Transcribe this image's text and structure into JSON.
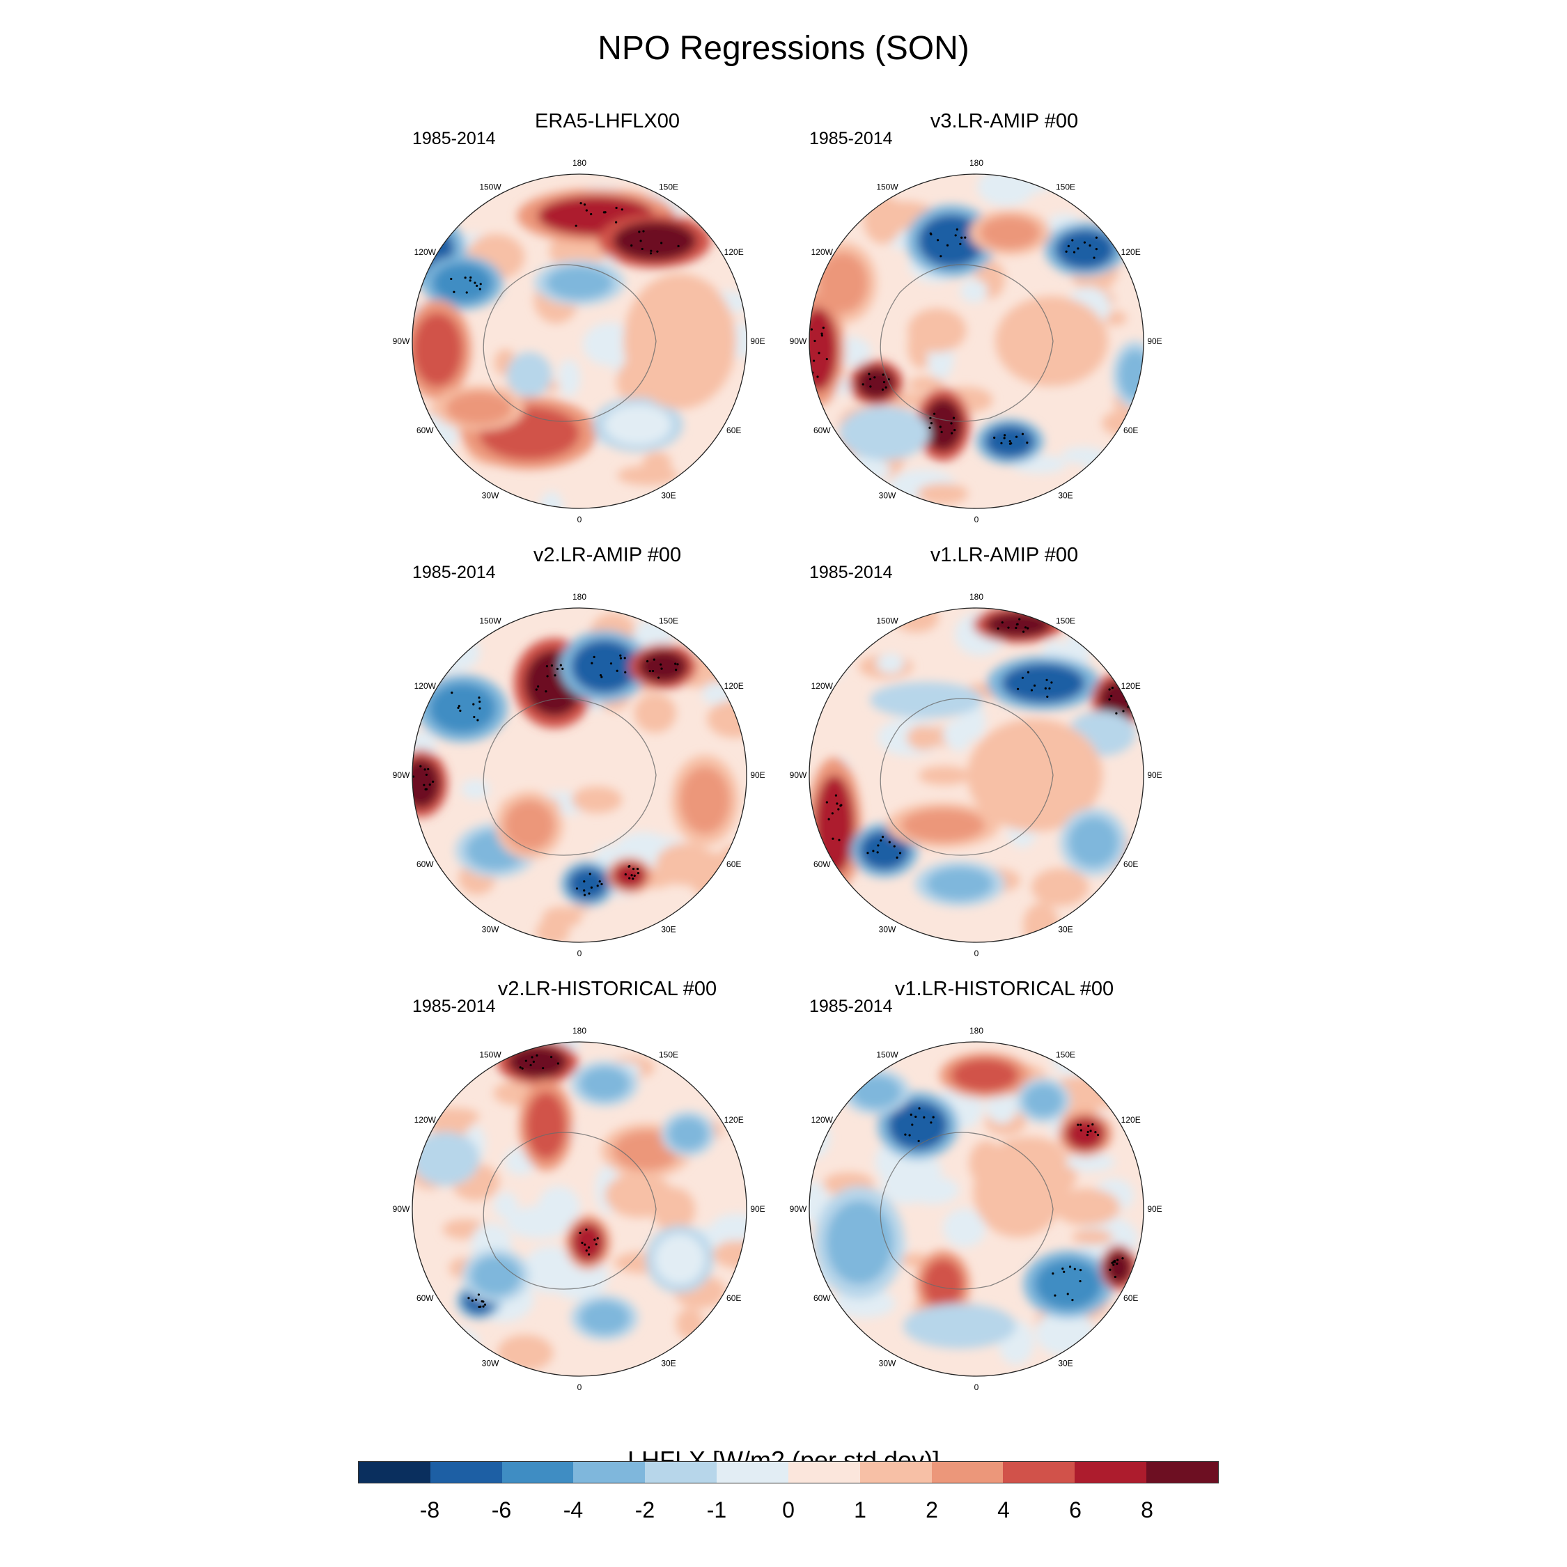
{
  "title": "NPO Regressions (SON)",
  "panels": [
    {
      "title": "ERA5-LHFLX00",
      "period": "1985-2014",
      "blobs": [
        [
          -0.95,
          -0.55,
          0.2,
          0.16,
          -8
        ],
        [
          -0.7,
          -0.35,
          0.18,
          0.12,
          -6
        ],
        [
          0.1,
          -0.75,
          0.35,
          0.12,
          6
        ],
        [
          0.45,
          -0.6,
          0.25,
          0.12,
          8
        ],
        [
          0.0,
          -0.35,
          0.2,
          0.1,
          -4
        ],
        [
          -0.85,
          0.05,
          0.15,
          0.22,
          4
        ],
        [
          -0.3,
          0.55,
          0.3,
          0.16,
          4
        ],
        [
          -0.6,
          0.4,
          0.2,
          0.1,
          2
        ],
        [
          0.35,
          0.5,
          0.2,
          0.12,
          -1
        ],
        [
          0.6,
          0.0,
          0.25,
          0.3,
          1
        ],
        [
          -0.3,
          0.2,
          0.1,
          0.1,
          -2
        ]
      ]
    },
    {
      "title": "v3.LR-AMIP  #00",
      "period": "1985-2014",
      "blobs": [
        [
          -0.15,
          -0.6,
          0.2,
          0.16,
          -8
        ],
        [
          0.65,
          -0.55,
          0.18,
          0.12,
          -8
        ],
        [
          0.2,
          -0.65,
          0.18,
          0.1,
          2
        ],
        [
          -0.8,
          -0.35,
          0.15,
          0.18,
          2
        ],
        [
          -0.95,
          0.05,
          0.12,
          0.25,
          6
        ],
        [
          -0.6,
          0.25,
          0.12,
          0.1,
          8
        ],
        [
          -0.2,
          0.5,
          0.12,
          0.16,
          8
        ],
        [
          0.2,
          0.6,
          0.15,
          0.1,
          -8
        ],
        [
          -0.55,
          0.55,
          0.2,
          0.12,
          -2
        ],
        [
          0.45,
          0.0,
          0.25,
          0.2,
          1
        ],
        [
          0.95,
          0.2,
          0.1,
          0.15,
          -4
        ]
      ]
    },
    {
      "title": "v2.LR-AMIP  #00",
      "period": "1985-2014",
      "blobs": [
        [
          -0.15,
          -0.55,
          0.18,
          0.2,
          8
        ],
        [
          0.15,
          -0.65,
          0.2,
          0.16,
          -8
        ],
        [
          0.5,
          -0.65,
          0.15,
          0.1,
          8
        ],
        [
          -0.7,
          -0.4,
          0.2,
          0.15,
          -6
        ],
        [
          -0.95,
          0.05,
          0.12,
          0.15,
          8
        ],
        [
          -0.5,
          0.45,
          0.18,
          0.12,
          -4
        ],
        [
          0.05,
          0.65,
          0.12,
          0.1,
          -8
        ],
        [
          0.3,
          0.6,
          0.1,
          0.08,
          6
        ],
        [
          0.75,
          0.15,
          0.15,
          0.2,
          2
        ],
        [
          -0.3,
          0.3,
          0.15,
          0.15,
          2
        ]
      ]
    },
    {
      "title": "v1.LR-AMIP  #00",
      "period": "1985-2014",
      "blobs": [
        [
          0.25,
          -0.9,
          0.2,
          0.08,
          8
        ],
        [
          0.4,
          -0.55,
          0.25,
          0.12,
          -8
        ],
        [
          0.85,
          -0.45,
          0.12,
          0.12,
          8
        ],
        [
          0.75,
          -0.25,
          0.15,
          0.1,
          -2
        ],
        [
          -0.85,
          0.3,
          0.12,
          0.3,
          6
        ],
        [
          -0.55,
          0.45,
          0.15,
          0.12,
          -8
        ],
        [
          -0.1,
          0.65,
          0.2,
          0.1,
          -4
        ],
        [
          -0.2,
          0.3,
          0.25,
          0.1,
          2
        ],
        [
          0.35,
          0.0,
          0.3,
          0.25,
          1
        ],
        [
          -0.3,
          -0.45,
          0.25,
          0.08,
          -2
        ],
        [
          0.7,
          0.4,
          0.15,
          0.15,
          -4
        ]
      ]
    },
    {
      "title": "v2.LR-HISTORICAL  #00",
      "period": "1985-2014",
      "blobs": [
        [
          -0.25,
          -0.88,
          0.18,
          0.1,
          8
        ],
        [
          0.15,
          -0.75,
          0.15,
          0.1,
          -4
        ],
        [
          -0.2,
          -0.5,
          0.12,
          0.2,
          4
        ],
        [
          0.4,
          -0.35,
          0.2,
          0.12,
          2
        ],
        [
          0.65,
          -0.45,
          0.12,
          0.1,
          -4
        ],
        [
          -0.6,
          0.55,
          0.1,
          0.08,
          -8
        ],
        [
          -0.5,
          0.4,
          0.15,
          0.12,
          -4
        ],
        [
          0.05,
          0.2,
          0.1,
          0.12,
          6
        ],
        [
          0.15,
          0.65,
          0.15,
          0.1,
          -4
        ],
        [
          -0.8,
          -0.3,
          0.15,
          0.12,
          -2
        ],
        [
          0.6,
          0.3,
          0.15,
          0.15,
          -1
        ]
      ]
    },
    {
      "title": "v1.LR-HISTORICAL  #00",
      "period": "1985-2014",
      "blobs": [
        [
          -0.35,
          -0.5,
          0.18,
          0.15,
          -8
        ],
        [
          -0.6,
          -0.7,
          0.15,
          0.1,
          -4
        ],
        [
          0.05,
          -0.8,
          0.2,
          0.1,
          4
        ],
        [
          0.4,
          -0.65,
          0.12,
          0.1,
          -4
        ],
        [
          0.65,
          -0.45,
          0.12,
          0.1,
          6
        ],
        [
          -0.7,
          0.2,
          0.2,
          0.25,
          -4
        ],
        [
          -0.2,
          0.45,
          0.12,
          0.15,
          4
        ],
        [
          0.55,
          0.45,
          0.2,
          0.15,
          -6
        ],
        [
          0.85,
          0.35,
          0.08,
          0.1,
          8
        ],
        [
          0.25,
          -0.1,
          0.2,
          0.2,
          1
        ],
        [
          -0.1,
          0.7,
          0.25,
          0.1,
          -2
        ]
      ]
    }
  ],
  "lon_labels": [
    "180",
    "150E",
    "120E",
    "90E",
    "60E",
    "30E",
    "0",
    "30W",
    "60W",
    "90W",
    "120W",
    "150W"
  ],
  "colorbar": {
    "title": "LHFLX [W/m2 (per std dev)]",
    "levels": [
      -8,
      -6,
      -4,
      -2,
      -1,
      0,
      1,
      2,
      4,
      6,
      8
    ],
    "tick_labels": [
      "-8",
      "-6",
      "-4",
      "-2",
      "-1",
      "0",
      "1",
      "2",
      "4",
      "6",
      "8"
    ],
    "colors": [
      "#0a2f5e",
      "#1d5fa4",
      "#3f8dc3",
      "#7fb7dc",
      "#b7d6ea",
      "#e2edf4",
      "#fbe6dc",
      "#f7c0a6",
      "#ec977a",
      "#d1524a",
      "#ad1c2d",
      "#6d0f22"
    ]
  }
}
